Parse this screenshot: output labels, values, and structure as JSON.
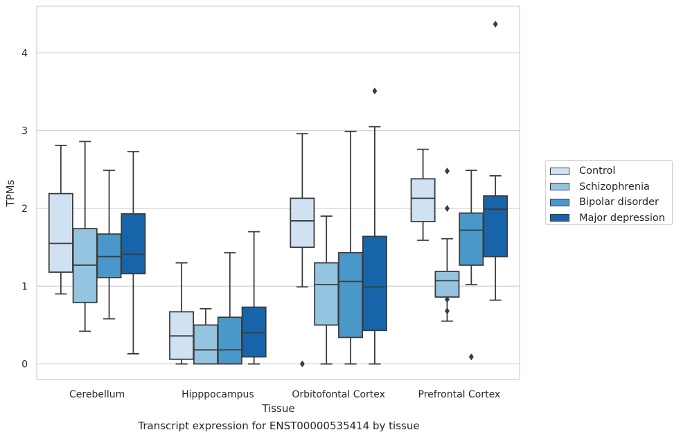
{
  "chart_data": {
    "type": "box",
    "xlabel": "Tissue",
    "ylabel": "TPMs",
    "caption": "Transcript expression for ENST00000535414 by tissue",
    "ylim": [
      -0.2,
      4.6
    ],
    "yticks": [
      0,
      1,
      2,
      3,
      4
    ],
    "grid": "horizontal",
    "legend_position": "right",
    "categories": [
      "Cerebellum",
      "Hipppocampus",
      "Orbitofontal Cortex",
      "Prefrontal Cortex"
    ],
    "series": [
      {
        "name": "Control",
        "color": "#d0e1f2",
        "boxes": [
          {
            "min": 0.9,
            "q1": 1.18,
            "median": 1.55,
            "q3": 2.19,
            "max": 2.81,
            "outliers": []
          },
          {
            "min": 0.0,
            "q1": 0.06,
            "median": 0.36,
            "q3": 0.67,
            "max": 1.3,
            "outliers": []
          },
          {
            "min": 0.99,
            "q1": 1.5,
            "median": 1.84,
            "q3": 2.13,
            "max": 2.96,
            "outliers": [
              0.0
            ]
          },
          {
            "min": 1.59,
            "q1": 1.83,
            "median": 2.13,
            "q3": 2.38,
            "max": 2.76,
            "outliers": []
          }
        ]
      },
      {
        "name": "Schizophrenia",
        "color": "#94c4df",
        "boxes": [
          {
            "min": 0.42,
            "q1": 0.79,
            "median": 1.27,
            "q3": 1.74,
            "max": 2.86,
            "outliers": []
          },
          {
            "min": 0.0,
            "q1": 0.0,
            "median": 0.18,
            "q3": 0.5,
            "max": 0.71,
            "outliers": []
          },
          {
            "min": 0.0,
            "q1": 0.5,
            "median": 1.02,
            "q3": 1.3,
            "max": 1.9,
            "outliers": []
          },
          {
            "min": 0.55,
            "q1": 0.86,
            "median": 1.07,
            "q3": 1.19,
            "max": 1.61,
            "outliers": [
              0.83,
              0.68,
              2.0,
              2.48
            ]
          }
        ]
      },
      {
        "name": "Bipolar disorder",
        "color": "#4a98c9",
        "boxes": [
          {
            "min": 0.58,
            "q1": 1.11,
            "median": 1.38,
            "q3": 1.67,
            "max": 2.49,
            "outliers": []
          },
          {
            "min": 0.0,
            "q1": 0.0,
            "median": 0.18,
            "q3": 0.6,
            "max": 1.43,
            "outliers": []
          },
          {
            "min": 0.0,
            "q1": 0.34,
            "median": 1.06,
            "q3": 1.43,
            "max": 2.99,
            "outliers": []
          },
          {
            "min": 1.02,
            "q1": 1.27,
            "median": 1.72,
            "q3": 1.94,
            "max": 2.49,
            "outliers": [
              0.09
            ]
          }
        ]
      },
      {
        "name": "Major depression",
        "color": "#1764ab",
        "boxes": [
          {
            "min": 0.13,
            "q1": 1.16,
            "median": 1.41,
            "q3": 1.93,
            "max": 2.73,
            "outliers": []
          },
          {
            "min": 0.0,
            "q1": 0.09,
            "median": 0.4,
            "q3": 0.73,
            "max": 1.7,
            "outliers": []
          },
          {
            "min": 0.0,
            "q1": 0.43,
            "median": 0.99,
            "q3": 1.64,
            "max": 3.05,
            "outliers": [
              3.51
            ]
          },
          {
            "min": 0.82,
            "q1": 1.38,
            "median": 1.99,
            "q3": 2.16,
            "max": 2.42,
            "outliers": [
              4.37
            ]
          }
        ]
      }
    ]
  }
}
